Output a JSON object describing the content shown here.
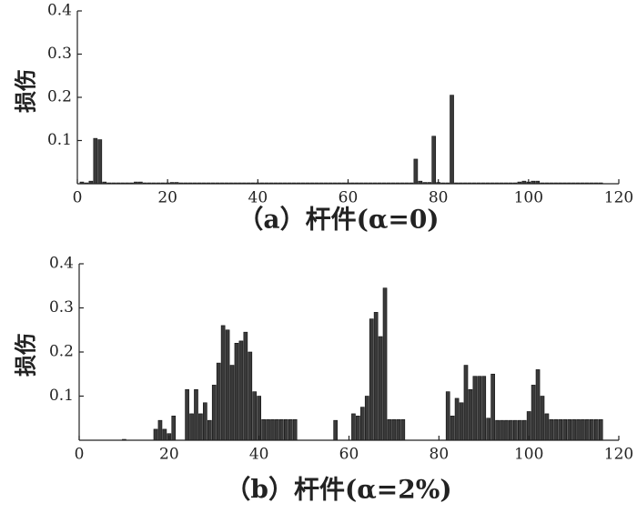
{
  "chart_data": [
    {
      "type": "bar",
      "caption": "（a）杆件(α=0)",
      "ylabel": "损伤",
      "color": "#3a3a3a",
      "x": [
        1,
        2,
        3,
        4,
        5,
        6,
        7,
        8,
        9,
        10,
        11,
        12,
        13,
        14,
        15,
        16,
        17,
        18,
        19,
        20,
        21,
        22,
        23,
        24,
        25,
        26,
        27,
        28,
        29,
        30,
        31,
        32,
        33,
        34,
        35,
        36,
        37,
        38,
        39,
        40,
        41,
        42,
        43,
        44,
        45,
        46,
        47,
        48,
        49,
        50,
        51,
        52,
        53,
        54,
        55,
        56,
        57,
        58,
        59,
        60,
        61,
        62,
        63,
        64,
        65,
        66,
        67,
        68,
        69,
        70,
        71,
        72,
        73,
        74,
        75,
        76,
        77,
        78,
        79,
        80,
        81,
        82,
        83,
        84,
        85,
        86,
        87,
        88,
        89,
        90,
        91,
        92,
        93,
        94,
        95,
        96,
        97,
        98,
        99,
        100,
        101,
        102,
        103,
        104,
        105,
        106,
        107,
        108,
        109,
        110,
        111,
        112,
        113,
        114,
        115,
        116
      ],
      "values": [
        0.004,
        0.002,
        0.006,
        0.105,
        0.102,
        0.004,
        0.002,
        0.002,
        0.002,
        0.002,
        0.002,
        0.002,
        0.004,
        0.004,
        0.002,
        0.002,
        0.002,
        0.002,
        0.002,
        0.002,
        0.003,
        0.003,
        0.002,
        0.002,
        0.002,
        0.002,
        0.002,
        0.002,
        0.002,
        0.002,
        0.002,
        0.002,
        0.002,
        0.002,
        0.002,
        0.002,
        0.002,
        0.002,
        0.002,
        0.002,
        0.002,
        0.002,
        0.002,
        0.002,
        0.002,
        0.002,
        0.002,
        0.002,
        0.002,
        0.002,
        0.002,
        0.002,
        0.002,
        0.002,
        0.002,
        0.002,
        0.002,
        0.002,
        0.002,
        0.002,
        0.002,
        0.002,
        0.002,
        0.002,
        0.002,
        0.002,
        0.002,
        0.002,
        0.002,
        0.002,
        0.002,
        0.002,
        0.002,
        0.002,
        0.057,
        0.006,
        0.003,
        0.003,
        0.11,
        0.003,
        0.002,
        0.002,
        0.205,
        0.002,
        0.002,
        0.002,
        0.002,
        0.002,
        0.002,
        0.002,
        0.002,
        0.002,
        0.002,
        0.002,
        0.002,
        0.002,
        0.002,
        0.004,
        0.006,
        0.004,
        0.006,
        0.006,
        0.002,
        0.002,
        0.002,
        0.002,
        0.002,
        0.002,
        0.002,
        0.002,
        0.002,
        0.002,
        0.002,
        0.002,
        0.002,
        0.002
      ],
      "xlim": [
        0,
        120
      ],
      "xticks": [
        0,
        20,
        40,
        60,
        80,
        100,
        120
      ],
      "ylim": [
        0,
        0.4
      ],
      "yticks": [
        0.1,
        0.2,
        0.3,
        0.4
      ]
    },
    {
      "type": "bar",
      "caption": "（b）杆件(α=2%)",
      "ylabel": "损伤",
      "color": "#3a3a3a",
      "x": [
        1,
        2,
        3,
        4,
        5,
        6,
        7,
        8,
        9,
        10,
        11,
        12,
        13,
        14,
        15,
        16,
        17,
        18,
        19,
        20,
        21,
        22,
        23,
        24,
        25,
        26,
        27,
        28,
        29,
        30,
        31,
        32,
        33,
        34,
        35,
        36,
        37,
        38,
        39,
        40,
        41,
        42,
        43,
        44,
        45,
        46,
        47,
        48,
        49,
        50,
        51,
        52,
        53,
        54,
        55,
        56,
        57,
        58,
        59,
        60,
        61,
        62,
        63,
        64,
        65,
        66,
        67,
        68,
        69,
        70,
        71,
        72,
        73,
        74,
        75,
        76,
        77,
        78,
        79,
        80,
        81,
        82,
        83,
        84,
        85,
        86,
        87,
        88,
        89,
        90,
        91,
        92,
        93,
        94,
        95,
        96,
        97,
        98,
        99,
        100,
        101,
        102,
        103,
        104,
        105,
        106,
        107,
        108,
        109,
        110,
        111,
        112,
        113,
        114,
        115,
        116
      ],
      "values": [
        0,
        0,
        0,
        0,
        0,
        0,
        0,
        0,
        0,
        0.002,
        0,
        0,
        0,
        0,
        0,
        0,
        0.025,
        0.045,
        0.025,
        0.015,
        0.055,
        0,
        0,
        0.115,
        0.06,
        0.115,
        0.06,
        0.085,
        0.045,
        0.125,
        0.175,
        0.26,
        0.25,
        0.17,
        0.22,
        0.225,
        0.245,
        0.2,
        0.11,
        0.1,
        0.047,
        0.047,
        0.047,
        0.047,
        0.047,
        0.047,
        0.047,
        0.047,
        0,
        0,
        0,
        0,
        0,
        0,
        0,
        0,
        0.045,
        0,
        0,
        0,
        0.06,
        0.055,
        0.075,
        0.1,
        0.275,
        0.29,
        0.235,
        0.345,
        0.047,
        0.047,
        0.047,
        0.047,
        0,
        0,
        0,
        0,
        0,
        0,
        0,
        0,
        0,
        0.11,
        0.055,
        0.095,
        0.085,
        0.17,
        0.115,
        0.145,
        0.145,
        0.145,
        0.05,
        0.15,
        0.045,
        0.045,
        0.045,
        0.045,
        0.045,
        0.045,
        0.045,
        0.065,
        0.125,
        0.16,
        0.1,
        0.06,
        0.047,
        0.047,
        0.047,
        0.047,
        0.047,
        0.047,
        0.047,
        0.047,
        0.047,
        0.047,
        0.047,
        0.047
      ],
      "xlim": [
        0,
        120
      ],
      "xticks": [
        0,
        20,
        40,
        60,
        80,
        100,
        120
      ],
      "ylim": [
        0,
        0.4
      ],
      "yticks": [
        0.1,
        0.2,
        0.3,
        0.4
      ]
    }
  ]
}
